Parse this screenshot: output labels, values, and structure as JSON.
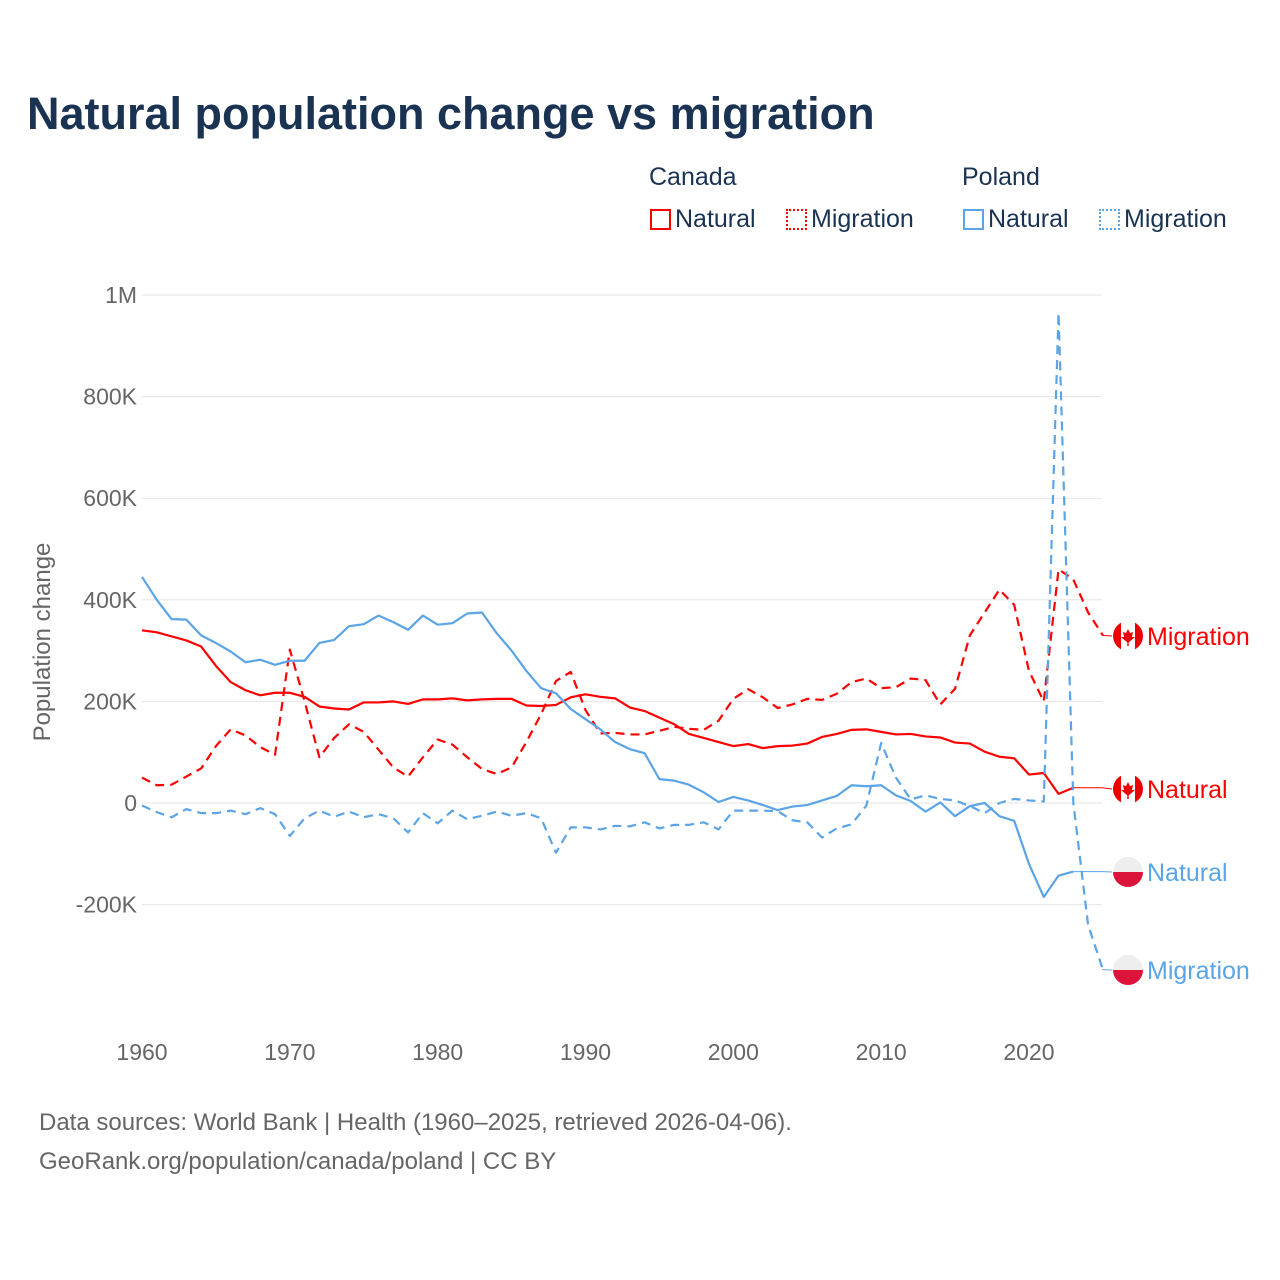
{
  "chart_data": {
    "type": "line",
    "title": "Natural population change vs migration",
    "xlabel": "",
    "ylabel": "Population change",
    "xlim": [
      1960,
      2025
    ],
    "ylim": [
      -350000,
      1000000
    ],
    "x_ticks": [
      1960,
      1970,
      1980,
      1990,
      2000,
      2010,
      2020
    ],
    "x_tick_labels": [
      "1960",
      "1970",
      "1980",
      "1990",
      "2000",
      "2010",
      "2020"
    ],
    "y_ticks": [
      1000000,
      800000,
      600000,
      400000,
      200000,
      0,
      -200000
    ],
    "y_tick_labels": [
      "1M",
      "800K",
      "600K",
      "400K",
      "200K",
      "0",
      "-200K"
    ],
    "grid": true,
    "legend": {
      "placement": "top-right",
      "groups": [
        {
          "country": "Canada",
          "items": [
            "Natural",
            "Migration"
          ]
        },
        {
          "country": "Poland",
          "items": [
            "Natural",
            "Migration"
          ]
        }
      ]
    },
    "colors": {
      "Canada": "#ff0000",
      "Poland": "#5ba4e6"
    },
    "series": [
      {
        "name": "Canada Natural",
        "country": "Canada",
        "kind": "Natural",
        "label": "Natural",
        "dash": false,
        "start": 1960,
        "values": [
          340000,
          336000,
          328000,
          320000,
          308000,
          270000,
          238000,
          222000,
          212000,
          217000,
          217000,
          209000,
          190000,
          186000,
          184000,
          198000,
          198000,
          200000,
          195000,
          204000,
          204000,
          206000,
          202000,
          204000,
          205000,
          205000,
          192000,
          191000,
          193000,
          208000,
          214000,
          209000,
          206000,
          188000,
          181000,
          168000,
          155000,
          136000,
          128000,
          120000,
          112000,
          116000,
          108000,
          112000,
          113000,
          117000,
          130000,
          136000,
          144000,
          145000,
          140000,
          135000,
          136000,
          131000,
          129000,
          119000,
          117000,
          101000,
          91000,
          88000,
          56000,
          59000,
          18000,
          30000
        ]
      },
      {
        "name": "Canada Migration",
        "country": "Canada",
        "kind": "Migration",
        "label": "Migration",
        "dash": true,
        "start": 1960,
        "values": [
          50000,
          35000,
          36000,
          52000,
          68000,
          112000,
          145000,
          133000,
          110000,
          95000,
          302000,
          200000,
          90000,
          128000,
          155000,
          140000,
          105000,
          70000,
          52000,
          90000,
          125000,
          115000,
          90000,
          67000,
          57000,
          70000,
          120000,
          175000,
          240000,
          258000,
          183000,
          137000,
          138000,
          135000,
          135000,
          142000,
          150000,
          146000,
          144000,
          162000,
          205000,
          224000,
          208000,
          187000,
          194000,
          205000,
          203000,
          215000,
          238000,
          245000,
          226000,
          228000,
          245000,
          242000,
          194000,
          225000,
          330000,
          375000,
          420000,
          390000,
          260000,
          200000,
          460000,
          440000,
          375000,
          330000
        ]
      },
      {
        "name": "Poland Natural",
        "country": "Poland",
        "kind": "Natural",
        "label": "Natural",
        "dash": false,
        "start": 1960,
        "values": [
          445000,
          400000,
          362000,
          361000,
          330000,
          315000,
          298000,
          277000,
          282000,
          272000,
          280000,
          280000,
          315000,
          321000,
          348000,
          352000,
          369000,
          356000,
          341000,
          369000,
          351000,
          354000,
          373000,
          375000,
          334000,
          300000,
          260000,
          226000,
          216000,
          185000,
          165000,
          145000,
          120000,
          106000,
          98000,
          47000,
          44000,
          36000,
          21000,
          2000,
          12000,
          5000,
          -4000,
          -14000,
          -7000,
          -4000,
          5000,
          14000,
          35000,
          33000,
          35000,
          15000,
          4000,
          -17000,
          1000,
          -26000,
          -6000,
          0,
          -26000,
          -35000,
          -120000,
          -185000,
          -143000,
          -135000
        ]
      },
      {
        "name": "Poland Migration",
        "country": "Poland",
        "kind": "Migration",
        "label": "Migration",
        "dash": true,
        "start": 1960,
        "values": [
          -5000,
          -18000,
          -28000,
          -12000,
          -20000,
          -20000,
          -15000,
          -22000,
          -10000,
          -22000,
          -65000,
          -30000,
          -15000,
          -27000,
          -17000,
          -28000,
          -22000,
          -30000,
          -58000,
          -20000,
          -40000,
          -15000,
          -32000,
          -25000,
          -17000,
          -25000,
          -20000,
          -30000,
          -98000,
          -48000,
          -48000,
          -52000,
          -45000,
          -46000,
          -38000,
          -50000,
          -43000,
          -43000,
          -38000,
          -52000,
          -15000,
          -15000,
          -15000,
          -16000,
          -34000,
          -38000,
          -68000,
          -50000,
          -42000,
          -5000,
          118000,
          50000,
          7000,
          15000,
          8000,
          5000,
          -6000,
          -20000,
          0,
          8000,
          5000,
          3000,
          965000,
          0,
          -240000,
          -328000
        ]
      }
    ]
  },
  "footer": {
    "line1": "Data sources: World Bank | Health (1960–2025, retrieved 2026-04-06).",
    "line2": "GeoRank.org/population/canada/poland | CC BY"
  }
}
